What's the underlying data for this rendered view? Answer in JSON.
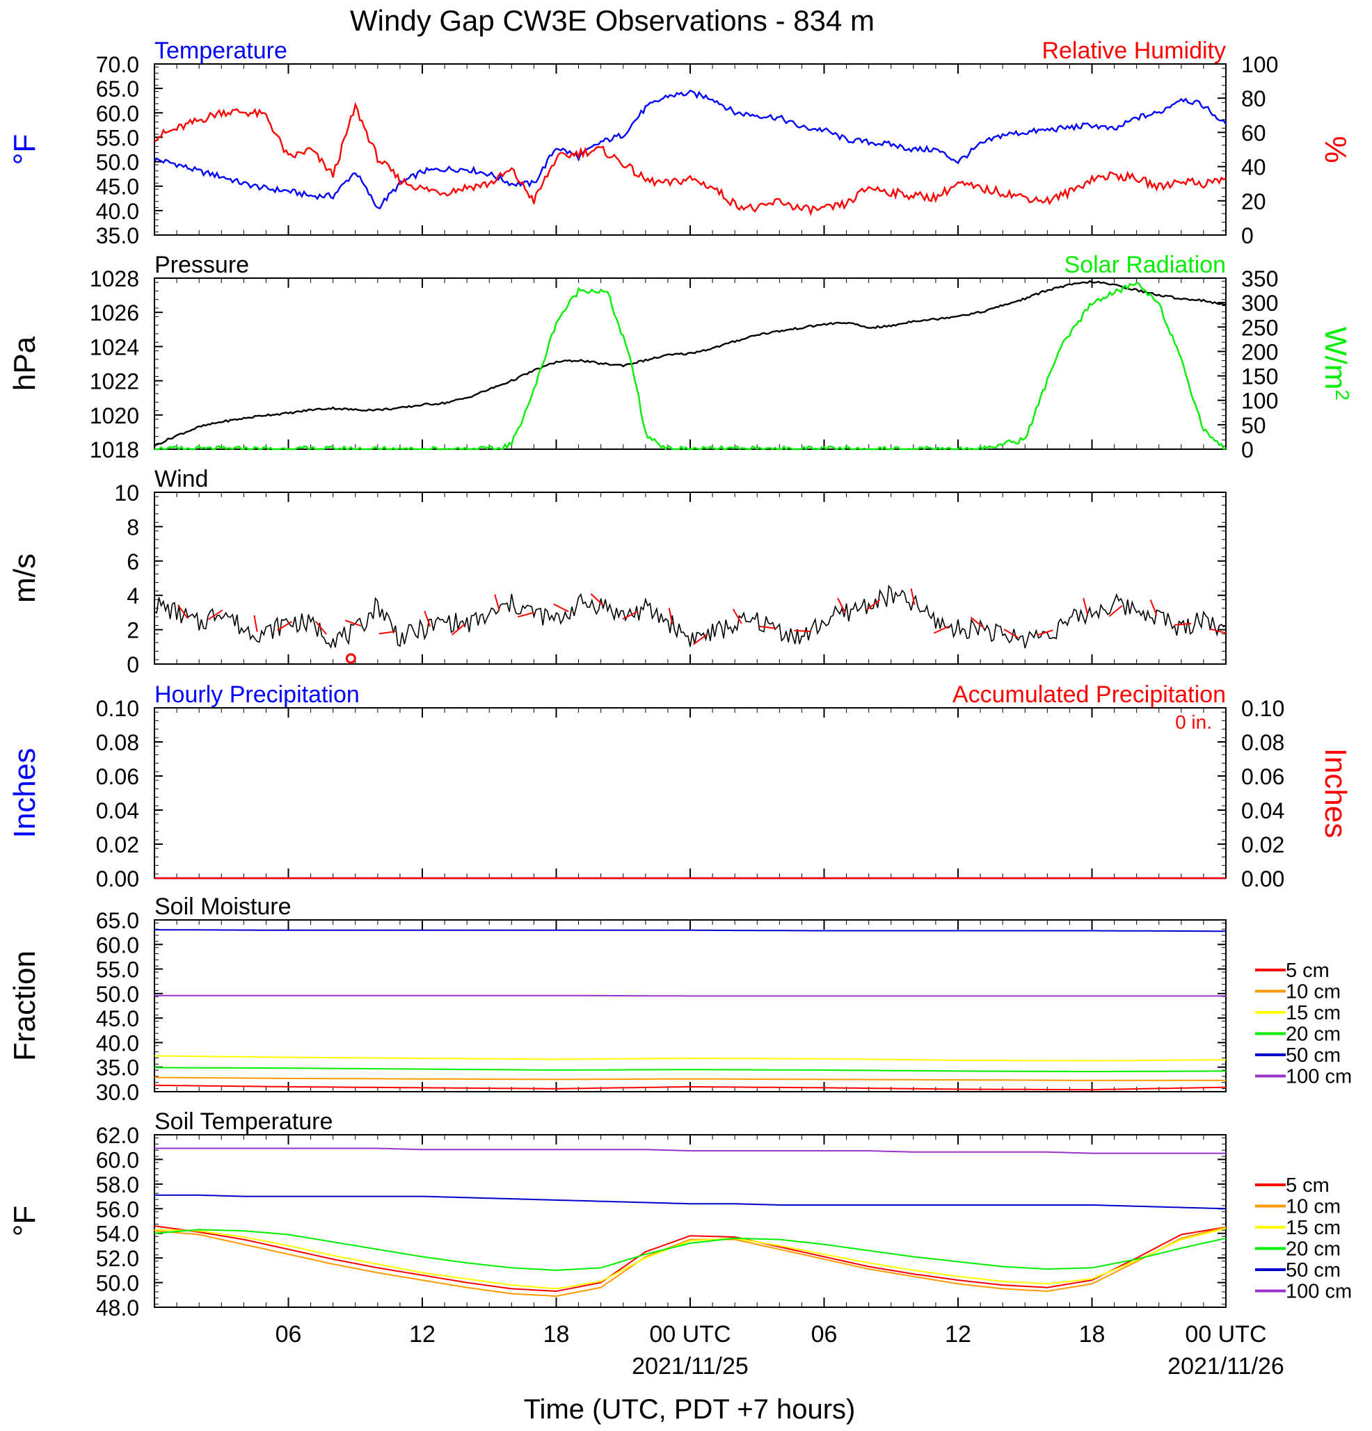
{
  "title": "Windy Gap CW3E Observations - 834 m",
  "colors": {
    "blue": "#0000ff",
    "red": "#ff0000",
    "green": "#00ee00",
    "black": "#000000",
    "orange": "#ff9900",
    "yellow": "#ffff00",
    "darkblue": "#0000cc",
    "purple": "#9933cc"
  },
  "xaxis": {
    "tick_labels": [
      "06",
      "12",
      "18",
      "00 UTC",
      "06",
      "12",
      "18",
      "00 UTC"
    ],
    "date_labels": [
      "2021/11/25",
      "2021/11/26"
    ],
    "label": "Time (UTC, PDT +7 hours)"
  },
  "chart_data": [
    {
      "id": "temp_rh",
      "type": "line",
      "title": "Temperature",
      "title_right": "Relative Humidity",
      "ylabel": "°F",
      "ylabel_right": "%",
      "ylim": [
        35,
        70
      ],
      "ylim_right": [
        0,
        100
      ],
      "yticks": [
        "70.0",
        "65.0",
        "60.0",
        "55.0",
        "50.0",
        "45.0",
        "40.0",
        "35.0"
      ],
      "yticks_right": [
        "100",
        "80",
        "60",
        "40",
        "20",
        "0"
      ],
      "x_hours": [
        0,
        1,
        2,
        3,
        4,
        5,
        6,
        7,
        8,
        9,
        10,
        11,
        12,
        13,
        14,
        15,
        16,
        17,
        18,
        19,
        20,
        21,
        22,
        23,
        24,
        25,
        26,
        27,
        28,
        29,
        30,
        31,
        32,
        33,
        34,
        35,
        36,
        37,
        38,
        39,
        40,
        41,
        42,
        43,
        44,
        45,
        46,
        47,
        48
      ],
      "series": [
        {
          "name": "Temperature",
          "axis": "left",
          "color_key": "blue",
          "values": [
            50.5,
            49.5,
            48,
            47,
            45.5,
            44.5,
            44,
            43,
            43,
            48,
            40.5,
            45.5,
            48,
            48.5,
            48.5,
            47.5,
            45.5,
            45.5,
            53,
            51,
            54,
            55.5,
            61,
            63.5,
            64,
            63,
            60,
            59.5,
            59,
            57,
            56.5,
            54.5,
            54,
            53.5,
            52.5,
            52.5,
            50,
            53.5,
            55.5,
            56,
            56.5,
            57,
            57.5,
            56.5,
            59,
            60,
            63,
            61.5,
            57.5
          ]
        },
        {
          "name": "Relative Humidity",
          "axis": "right",
          "color_key": "red",
          "values": [
            57,
            62,
            67,
            72,
            72,
            70,
            45,
            50,
            35,
            75,
            45,
            32,
            27,
            25,
            28,
            30,
            38,
            20,
            45,
            48,
            50,
            42,
            32,
            30,
            33,
            28,
            18,
            15,
            20,
            15,
            15,
            18,
            28,
            25,
            23,
            22,
            30,
            27,
            25,
            22,
            20,
            25,
            33,
            35,
            33,
            28,
            32,
            30,
            33
          ]
        }
      ]
    },
    {
      "id": "pres_solar",
      "type": "line",
      "title": "Pressure",
      "title_right": "Solar Radiation",
      "ylabel": "hPa",
      "ylabel_right": "W/m",
      "ylabel_right_sup": "2",
      "ylim": [
        1018,
        1028
      ],
      "ylim_right": [
        0,
        350
      ],
      "yticks": [
        "1028",
        "1026",
        "1024",
        "1022",
        "1020",
        "1018"
      ],
      "yticks_right": [
        "350",
        "300",
        "250",
        "200",
        "150",
        "100",
        "50",
        "0"
      ],
      "x_hours": [
        0,
        1,
        2,
        3,
        4,
        5,
        6,
        7,
        8,
        9,
        10,
        11,
        12,
        13,
        14,
        15,
        16,
        17,
        18,
        19,
        20,
        21,
        22,
        23,
        24,
        25,
        26,
        27,
        28,
        29,
        30,
        31,
        32,
        33,
        34,
        35,
        36,
        37,
        38,
        39,
        40,
        41,
        42,
        43,
        44,
        45,
        46,
        47,
        48
      ],
      "series": [
        {
          "name": "Pressure",
          "axis": "left",
          "color_key": "black",
          "values": [
            1018.2,
            1018.8,
            1019.3,
            1019.6,
            1019.8,
            1020.0,
            1020.1,
            1020.3,
            1020.4,
            1020.3,
            1020.3,
            1020.4,
            1020.6,
            1020.7,
            1021.0,
            1021.5,
            1022.0,
            1022.6,
            1023.1,
            1023.2,
            1023.0,
            1022.9,
            1023.2,
            1023.5,
            1023.6,
            1023.9,
            1024.3,
            1024.7,
            1024.9,
            1025.1,
            1025.3,
            1025.4,
            1025.1,
            1025.2,
            1025.5,
            1025.6,
            1025.8,
            1026.0,
            1026.4,
            1026.8,
            1027.3,
            1027.6,
            1027.8,
            1027.6,
            1027.3,
            1027.0,
            1026.8,
            1026.7,
            1026.4
          ]
        },
        {
          "name": "Solar Radiation",
          "axis": "right",
          "color_key": "green",
          "x_hours": [
            0,
            15,
            15.3,
            16,
            17,
            18,
            19,
            19.5,
            20.3,
            21.2,
            21.5,
            22,
            23,
            24,
            34,
            37,
            39,
            40.5,
            42,
            44,
            45,
            46,
            47,
            48
          ],
          "values": [
            0,
            0,
            0,
            10,
            120,
            260,
            325,
            326,
            320,
            200,
            150,
            30,
            0,
            0,
            0,
            0,
            20,
            200,
            300,
            340,
            300,
            180,
            40,
            0
          ]
        }
      ]
    },
    {
      "id": "wind",
      "type": "line",
      "title": "Wind",
      "ylabel": "m/s",
      "ylim": [
        0,
        10
      ],
      "yticks": [
        "10",
        "8",
        "6",
        "4",
        "2",
        "0"
      ],
      "x_hours": [
        0,
        1,
        2,
        3,
        4,
        5,
        6,
        7,
        8,
        9,
        10,
        11,
        12,
        13,
        14,
        15,
        16,
        17,
        18,
        19,
        20,
        21,
        22,
        23,
        24,
        25,
        26,
        27,
        28,
        29,
        30,
        31,
        32,
        33,
        34,
        35,
        36,
        37,
        38,
        39,
        40,
        41,
        42,
        43,
        44,
        45,
        46,
        47,
        48
      ],
      "series": [
        {
          "name": "Wind Speed",
          "color_key": "black",
          "values": [
            3.5,
            3.0,
            2.3,
            3.2,
            2.0,
            1.8,
            2.5,
            2.3,
            1.5,
            1.8,
            3.5,
            1.5,
            2.0,
            2.5,
            2.3,
            2.8,
            3.5,
            3.0,
            2.5,
            3.5,
            3.5,
            2.8,
            3.2,
            2.5,
            1.5,
            1.8,
            2.3,
            2.5,
            2.0,
            1.5,
            2.5,
            3.0,
            3.5,
            4.0,
            3.5,
            2.5,
            2.0,
            2.2,
            1.6,
            1.5,
            1.8,
            2.5,
            3.0,
            3.5,
            3.2,
            2.8,
            2.0,
            2.8,
            1.8
          ]
        }
      ]
    },
    {
      "id": "precip",
      "type": "line",
      "title": "Hourly Precipitation",
      "title_right": "Accumulated Precipitation",
      "annotation": "0 in.",
      "ylabel": "Inches",
      "ylabel_right": "Inches",
      "ylim": [
        0,
        0.1
      ],
      "ylim_right": [
        0,
        0.1
      ],
      "yticks": [
        "0.10",
        "0.08",
        "0.06",
        "0.04",
        "0.02",
        "0.00"
      ],
      "yticks_right": [
        "0.10",
        "0.08",
        "0.06",
        "0.04",
        "0.02",
        "0.00"
      ],
      "x_hours": [
        0,
        48
      ],
      "series": [
        {
          "name": "Hourly Precipitation",
          "axis": "left",
          "color_key": "blue",
          "values": [
            0,
            0
          ]
        },
        {
          "name": "Accumulated Precipitation",
          "axis": "right",
          "color_key": "red",
          "values": [
            0,
            0
          ]
        }
      ]
    },
    {
      "id": "soil_moisture",
      "type": "line",
      "title": "Soil Moisture",
      "ylabel": "Fraction",
      "ylim": [
        30,
        65
      ],
      "yticks": [
        "65.0",
        "60.0",
        "55.0",
        "50.0",
        "45.0",
        "40.0",
        "35.0",
        "30.0"
      ],
      "x_hours": [
        0,
        6,
        12,
        18,
        24,
        30,
        36,
        42,
        48
      ],
      "legend": [
        "5 cm",
        "10 cm",
        "15 cm",
        "20 cm",
        "50 cm",
        "100 cm"
      ],
      "series": [
        {
          "name": "5 cm",
          "color_key": "red",
          "values": [
            31.3,
            31.0,
            30.8,
            30.6,
            31.0,
            30.8,
            30.5,
            30.4,
            30.9
          ]
        },
        {
          "name": "10 cm",
          "color_key": "orange",
          "values": [
            32.9,
            32.7,
            32.6,
            32.5,
            32.6,
            32.5,
            32.4,
            32.3,
            32.3
          ]
        },
        {
          "name": "15 cm",
          "color_key": "yellow",
          "values": [
            37.3,
            37.0,
            36.8,
            36.6,
            36.8,
            36.7,
            36.4,
            36.3,
            36.5
          ]
        },
        {
          "name": "20 cm",
          "color_key": "green",
          "values": [
            34.9,
            34.8,
            34.6,
            34.4,
            34.5,
            34.4,
            34.2,
            34.1,
            34.2
          ]
        },
        {
          "name": "50 cm",
          "color_key": "darkblue",
          "values": [
            63.0,
            62.9,
            62.9,
            62.9,
            62.9,
            62.8,
            62.8,
            62.8,
            62.7
          ]
        },
        {
          "name": "100 cm",
          "color_key": "purple",
          "values": [
            49.6,
            49.6,
            49.6,
            49.6,
            49.5,
            49.5,
            49.5,
            49.5,
            49.5
          ]
        }
      ]
    },
    {
      "id": "soil_temp",
      "type": "line",
      "title": "Soil Temperature",
      "ylabel": "°F",
      "ylim": [
        48,
        62
      ],
      "yticks": [
        "62.0",
        "60.0",
        "58.0",
        "56.0",
        "54.0",
        "52.0",
        "50.0",
        "48.0"
      ],
      "x_hours": [
        0,
        2,
        4,
        6,
        8,
        10,
        12,
        14,
        16,
        18,
        20,
        22,
        24,
        26,
        28,
        30,
        32,
        34,
        36,
        38,
        40,
        42,
        44,
        46,
        48
      ],
      "legend": [
        "5 cm",
        "10 cm",
        "15 cm",
        "20 cm",
        "50 cm",
        "100 cm"
      ],
      "series": [
        {
          "name": "5 cm",
          "color_key": "red",
          "values": [
            54.6,
            54.1,
            53.5,
            52.7,
            51.9,
            51.2,
            50.6,
            50.0,
            49.5,
            49.3,
            50.0,
            52.5,
            53.8,
            53.7,
            52.9,
            52.1,
            51.3,
            50.7,
            50.2,
            49.8,
            49.6,
            50.2,
            52.0,
            53.9,
            54.5
          ]
        },
        {
          "name": "10 cm",
          "color_key": "orange",
          "values": [
            54.2,
            53.9,
            53.1,
            52.3,
            51.5,
            50.8,
            50.2,
            49.6,
            49.1,
            48.9,
            49.6,
            52.1,
            53.5,
            53.5,
            52.7,
            51.9,
            51.1,
            50.5,
            49.9,
            49.5,
            49.3,
            49.9,
            51.7,
            53.6,
            54.5
          ]
        },
        {
          "name": "15 cm",
          "color_key": "yellow",
          "values": [
            54.3,
            54.2,
            53.7,
            53.0,
            52.2,
            51.5,
            50.8,
            50.3,
            49.8,
            49.5,
            50.1,
            52.0,
            53.4,
            53.6,
            53.0,
            52.3,
            51.6,
            51.0,
            50.5,
            50.1,
            49.9,
            50.3,
            51.8,
            53.5,
            54.4
          ]
        },
        {
          "name": "20 cm",
          "color_key": "green",
          "values": [
            54.0,
            54.3,
            54.2,
            53.9,
            53.3,
            52.7,
            52.1,
            51.6,
            51.2,
            51.0,
            51.2,
            52.3,
            53.2,
            53.6,
            53.5,
            53.1,
            52.6,
            52.1,
            51.7,
            51.3,
            51.1,
            51.2,
            51.9,
            52.8,
            53.6
          ]
        },
        {
          "name": "50 cm",
          "color_key": "darkblue",
          "values": [
            57.1,
            57.1,
            57.0,
            57.0,
            57.0,
            57.0,
            57.0,
            56.9,
            56.8,
            56.7,
            56.6,
            56.5,
            56.4,
            56.4,
            56.3,
            56.3,
            56.3,
            56.3,
            56.3,
            56.3,
            56.3,
            56.3,
            56.2,
            56.1,
            56.0
          ]
        },
        {
          "name": "100 cm",
          "color_key": "purple",
          "values": [
            60.9,
            60.9,
            60.9,
            60.9,
            60.9,
            60.9,
            60.8,
            60.8,
            60.8,
            60.8,
            60.8,
            60.8,
            60.7,
            60.7,
            60.7,
            60.7,
            60.7,
            60.6,
            60.6,
            60.6,
            60.6,
            60.5,
            60.5,
            60.5,
            60.5
          ]
        }
      ]
    }
  ]
}
